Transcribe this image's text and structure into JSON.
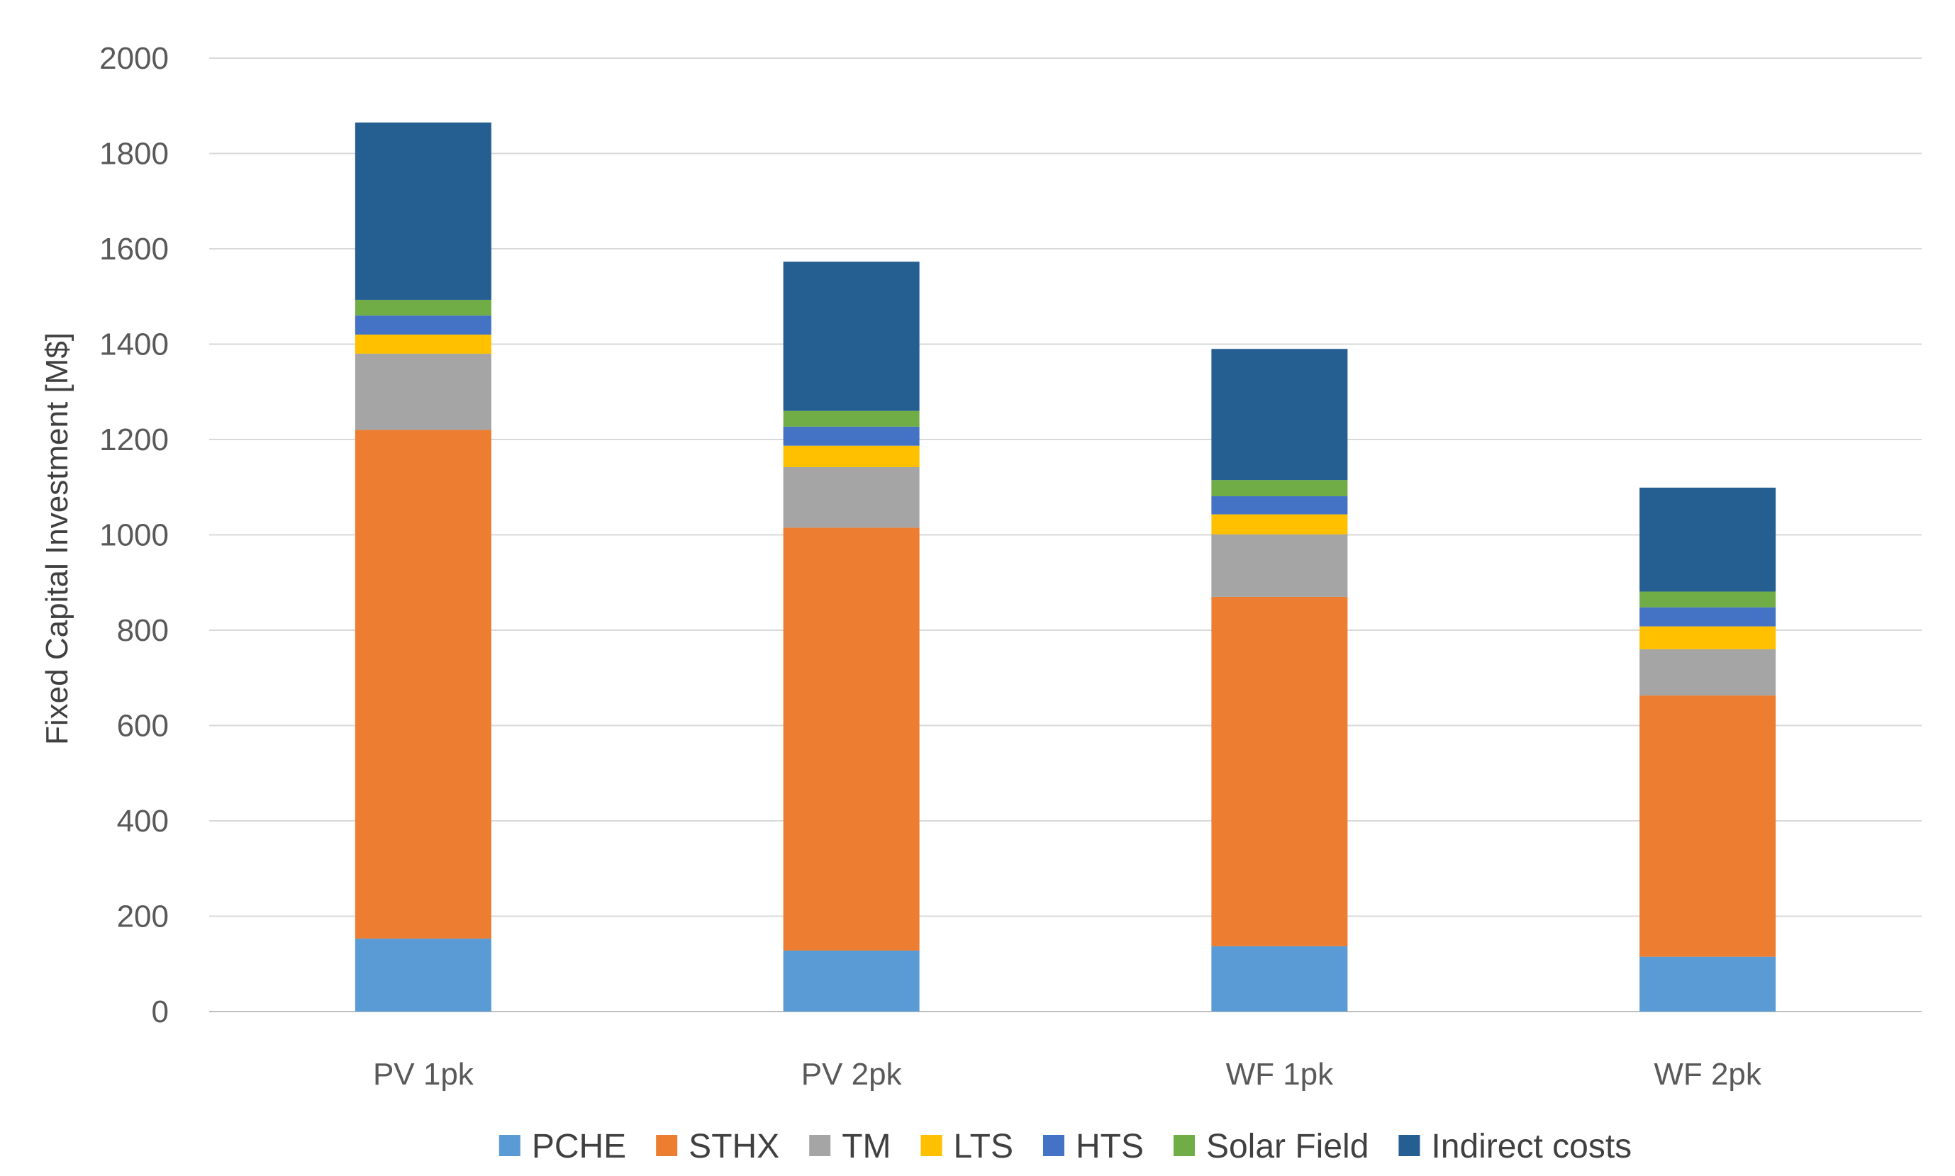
{
  "chart_data": {
    "type": "bar",
    "stacked": true,
    "title": "",
    "xlabel": "",
    "ylabel": "Fixed Capital Investment [M$]",
    "ylim": [
      0,
      2000
    ],
    "yticks": [
      0,
      200,
      400,
      600,
      800,
      1000,
      1200,
      1400,
      1600,
      1800,
      2000
    ],
    "grid": true,
    "legend_position": "bottom",
    "categories": [
      "PV 1pk",
      "PV 2pk",
      "WF 1pk",
      "WF 2pk"
    ],
    "series": [
      {
        "name": "PCHE",
        "color": "#5B9BD5",
        "values": [
          153,
          128,
          137,
          115
        ]
      },
      {
        "name": "STHX",
        "color": "#ED7D31",
        "values": [
          1067,
          887,
          733,
          548
        ]
      },
      {
        "name": "TM",
        "color": "#A5A5A5",
        "values": [
          160,
          127,
          131,
          97
        ]
      },
      {
        "name": "LTS",
        "color": "#FFC000",
        "values": [
          40,
          45,
          42,
          48
        ]
      },
      {
        "name": "HTS",
        "color": "#4472C4",
        "values": [
          40,
          40,
          38,
          40
        ]
      },
      {
        "name": "Solar Field",
        "color": "#70AD47",
        "values": [
          33,
          33,
          34,
          33
        ]
      },
      {
        "name": "Indirect costs",
        "color": "#255E91",
        "values": [
          372,
          313,
          275,
          218
        ]
      }
    ]
  }
}
